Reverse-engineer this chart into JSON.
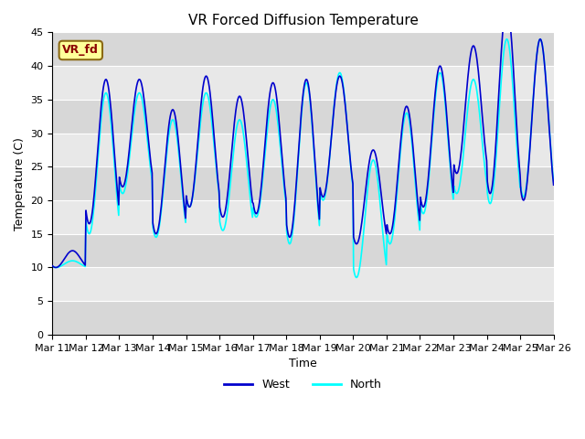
{
  "title": "VR Forced Diffusion Temperature",
  "xlabel": "Time",
  "ylabel": "Temperature (C)",
  "ylim": [
    0,
    45
  ],
  "annotation_text": "VR_fd",
  "legend_labels": [
    "West",
    "North"
  ],
  "west_color": "#0000CD",
  "north_color": "#00FFFF",
  "background_color": "#ffffff",
  "plot_bg_color": "#e8e8e8",
  "xtick_labels": [
    "Mar 11",
    "Mar 12",
    "Mar 13",
    "Mar 14",
    "Mar 15",
    "Mar 16",
    "Mar 17",
    "Mar 18",
    "Mar 19",
    "Mar 20",
    "Mar 21",
    "Mar 22",
    "Mar 23",
    "Mar 24",
    "Mar 25",
    "Mar 26"
  ],
  "ytick_values": [
    0,
    5,
    10,
    15,
    20,
    25,
    30,
    35,
    40,
    45
  ],
  "west_peaks": [
    12.5,
    38,
    38,
    33.5,
    38.5,
    35.5,
    37.5,
    38,
    38.5,
    27.5,
    34,
    40,
    43,
    49,
    44
  ],
  "west_troughs": [
    10,
    16.5,
    22,
    15,
    19,
    17.5,
    18,
    14.5,
    20.5,
    13.5,
    15,
    19,
    24,
    21,
    20
  ],
  "north_peaks": [
    11,
    36,
    36,
    32,
    36,
    32,
    35,
    37.5,
    39,
    26,
    33,
    39,
    38,
    44,
    44
  ],
  "north_troughs": [
    10,
    15,
    21,
    14.5,
    19,
    15.5,
    17.5,
    13.5,
    20,
    8.5,
    13.5,
    18,
    21,
    19.5,
    20.5
  ]
}
